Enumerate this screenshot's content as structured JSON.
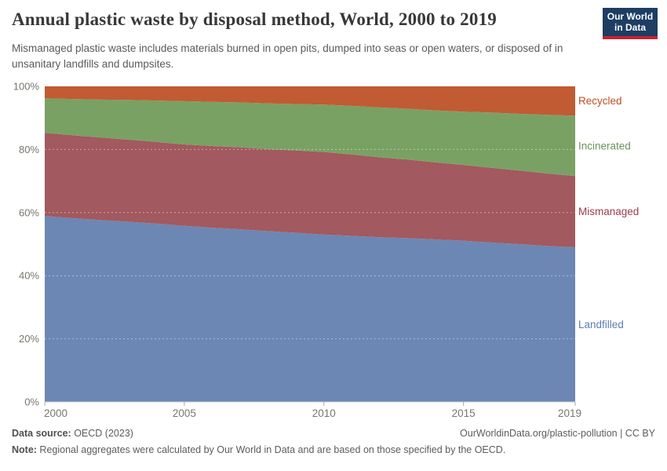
{
  "header": {
    "title": "Annual plastic waste by disposal method, World, 2000 to 2019",
    "subtitle": "Mismanaged plastic waste includes materials burned in open pits, dumped into seas or open waters, or disposed of in unsanitary landfills and dumpsites.",
    "logo": {
      "line1": "Our World",
      "line2": "in Data",
      "bg_color": "#1d3d63",
      "bar_color": "#c52333"
    }
  },
  "chart_data": {
    "type": "area",
    "stacked": true,
    "percent_scale": true,
    "title": "Annual plastic waste by disposal method, World, 2000 to 2019",
    "xlabel": "",
    "ylabel": "",
    "ylim": [
      0,
      100
    ],
    "grid": "dashed-horizontal",
    "legend_position": "right-of-plot",
    "x": [
      2000,
      2001,
      2002,
      2003,
      2004,
      2005,
      2006,
      2007,
      2008,
      2009,
      2010,
      2011,
      2012,
      2013,
      2014,
      2015,
      2016,
      2017,
      2018,
      2019
    ],
    "x_tick_labels": [
      "2000",
      "2005",
      "2010",
      "2015",
      "2019"
    ],
    "x_tick_years": [
      2000,
      2005,
      2010,
      2015,
      2019
    ],
    "y_tick_labels": [
      "0%",
      "20%",
      "40%",
      "60%",
      "80%",
      "100%"
    ],
    "y_tick_values": [
      0,
      20,
      40,
      60,
      80,
      100
    ],
    "series": [
      {
        "name": "Landfilled",
        "color": "#6c87b4",
        "label_color": "#5b7cb5",
        "values": [
          58.9,
          58.2,
          57.6,
          57.1,
          56.5,
          55.8,
          55.2,
          54.7,
          54.1,
          53.6,
          53.0,
          52.6,
          52.2,
          51.9,
          51.5,
          51.1,
          50.5,
          50.0,
          49.4,
          49.0
        ]
      },
      {
        "name": "Mismanaged",
        "color": "#a2595f",
        "label_color": "#9e3a4f",
        "values": [
          26.4,
          26.3,
          26.2,
          26.0,
          25.9,
          25.8,
          25.9,
          26.0,
          26.0,
          26.1,
          26.2,
          25.8,
          25.3,
          24.9,
          24.4,
          24.0,
          23.7,
          23.3,
          23.0,
          22.6
        ]
      },
      {
        "name": "Incinerated",
        "color": "#7aa164",
        "label_color": "#69945b",
        "values": [
          10.9,
          11.5,
          12.0,
          12.6,
          13.1,
          13.7,
          14.0,
          14.2,
          14.5,
          14.7,
          15.0,
          15.4,
          15.8,
          16.1,
          16.5,
          16.9,
          17.5,
          18.0,
          18.6,
          19.1
        ]
      },
      {
        "name": "Recycled",
        "color": "#c05b33",
        "label_color": "#c04e21",
        "values": [
          3.8,
          4.0,
          4.2,
          4.3,
          4.5,
          4.7,
          4.9,
          5.1,
          5.4,
          5.6,
          5.8,
          6.2,
          6.7,
          7.1,
          7.6,
          8.0,
          8.3,
          8.7,
          9.0,
          9.3
        ]
      }
    ],
    "style": {
      "axis_color": "#c9c9c9",
      "tick_color": "#a8a8a8",
      "axis_label_color": "#76766f",
      "grid_dash_color": "rgba(255,255,255,0.45)"
    }
  },
  "footer": {
    "source_label": "Data source:",
    "source_value": " OECD (2023)",
    "link": "OurWorldinData.org/plastic-pollution | CC BY",
    "note_label": "Note:",
    "note_value": " Regional aggregates were calculated by Our World in Data and are based on those specified by the OECD."
  }
}
